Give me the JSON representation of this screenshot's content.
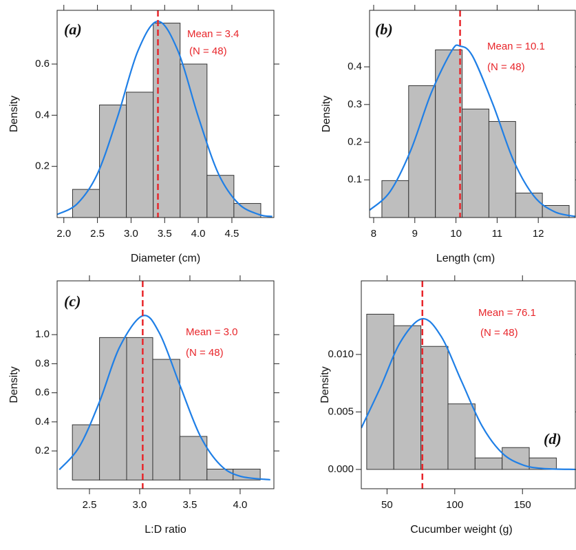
{
  "chart_data": [
    {
      "type": "histogram",
      "panel_label": "(a)",
      "xlabel": "Diameter (cm)",
      "ylabel": "Density",
      "bins": [
        2.13,
        2.53,
        2.93,
        3.33,
        3.73,
        4.13,
        4.53,
        4.93
      ],
      "values": [
        0.11,
        0.44,
        0.49,
        0.76,
        0.6,
        0.165,
        0.055
      ],
      "color": "#bebebe",
      "curve_color": "#1f7fe6",
      "mean_color": "#e8262b",
      "curve": {
        "x": [
          1.9,
          2.2,
          2.5,
          2.8,
          3.1,
          3.4,
          3.7,
          4.0,
          4.3,
          4.6,
          4.9,
          5.1
        ],
        "y": [
          0.012,
          0.054,
          0.171,
          0.394,
          0.65,
          0.767,
          0.65,
          0.394,
          0.171,
          0.054,
          0.012,
          0.004
        ]
      },
      "mean_line": 3.4,
      "annotation": "Mean = 3.4",
      "n_label": "(N = 48)",
      "xlim": [
        1.9,
        5.125
      ],
      "ylim": [
        0,
        0.81
      ],
      "xticks": [
        {
          "value": 2,
          "label": "2.0"
        },
        2.5,
        {
          "value": 3,
          "label": "3.0"
        },
        3.5,
        {
          "value": 4,
          "label": "4.0"
        },
        4.5
      ],
      "yticks": [
        0.2,
        0.4,
        0.6
      ]
    },
    {
      "type": "histogram",
      "panel_label": "(b)",
      "xlabel": "Length (cm)",
      "ylabel": "Density",
      "bins": [
        8.2,
        8.85,
        9.5,
        10.15,
        10.8,
        11.45,
        12.1,
        12.75
      ],
      "values": [
        0.098,
        0.35,
        0.445,
        0.288,
        0.255,
        0.065,
        0.032
      ],
      "color": "#bebebe",
      "curve_color": "#1f7fe6",
      "mean_color": "#e8262b",
      "curve": {
        "x": [
          7.9,
          8.4,
          8.9,
          9.4,
          9.9,
          10.1,
          10.4,
          10.9,
          11.4,
          11.9,
          12.4,
          12.9
        ],
        "y": [
          0.0195,
          0.069,
          0.178,
          0.331,
          0.443,
          0.455,
          0.429,
          0.3,
          0.151,
          0.056,
          0.015,
          0.0028
        ]
      },
      "mean_line": 10.1,
      "annotation": "Mean = 10.1",
      "n_label": "(N = 48)",
      "xlim": [
        7.9,
        12.9
      ],
      "ylim": [
        0,
        0.55
      ],
      "xticks": [
        8,
        9,
        10,
        11,
        12
      ],
      "yticks": [
        0.1,
        0.2,
        0.3,
        0.4
      ]
    },
    {
      "type": "histogram",
      "panel_label": "(c)",
      "xlabel": "L:D ratio",
      "ylabel": "Density",
      "bins": [
        2.33,
        2.6,
        2.87,
        3.13,
        3.4,
        3.67,
        3.93,
        4.2
      ],
      "values": [
        0.38,
        0.98,
        0.98,
        0.83,
        0.3,
        0.075,
        0.075
      ],
      "color": "#bebebe",
      "curve_color": "#1f7fe6",
      "mean_color": "#e8262b",
      "curve": {
        "x": [
          2.2,
          2.4,
          2.6,
          2.8,
          3.03,
          3.2,
          3.4,
          3.6,
          3.8,
          4.0,
          4.3
        ],
        "y": [
          0.071,
          0.23,
          0.538,
          0.914,
          1.13,
          1.006,
          0.653,
          0.307,
          0.105,
          0.026,
          0.0017
        ]
      },
      "mean_line": 3.03,
      "annotation": "Mean = 3.0",
      "n_label": "(N = 48)",
      "xlim": [
        2.178,
        4.336
      ],
      "ylim": [
        -0.06,
        1.37
      ],
      "xticks": [
        2.5,
        {
          "value": 3,
          "label": "3.0"
        },
        3.5,
        {
          "value": 4,
          "label": "4.0"
        }
      ],
      "yticks": [
        0.2,
        0.4,
        0.6,
        0.8,
        {
          "value": 1,
          "label": "1.0"
        }
      ]
    },
    {
      "type": "histogram",
      "panel_label": "(d)",
      "xlabel": "Cucumber weight (g)",
      "ylabel": "Density",
      "bins": [
        35,
        55,
        75,
        95,
        115,
        135,
        155,
        175
      ],
      "values": [
        0.0135,
        0.0125,
        0.0107,
        0.0057,
        0.001,
        0.0019,
        0.001
      ],
      "color": "#bebebe",
      "curve_color": "#1f7fe6",
      "mean_color": "#e8262b",
      "curve": {
        "x": [
          31,
          45,
          60,
          76,
          90,
          105,
          120,
          135,
          150,
          165,
          189
        ],
        "y": [
          0.0036,
          0.0071,
          0.0111,
          0.0131,
          0.01156,
          0.00767,
          0.00381,
          0.00142,
          0.0004,
          8e-05,
          0
        ]
      },
      "mean_line": 76.1,
      "annotation": "Mean = 76.1",
      "n_label": "(N = 48)",
      "xlim": [
        31,
        189
      ],
      "ylim": [
        -0.00168,
        0.0164
      ],
      "xticks": [
        50,
        100,
        150
      ],
      "yticks": [
        {
          "value": 0,
          "label": "0.000"
        },
        {
          "value": 0.005,
          "label": "0.005"
        },
        {
          "value": 0.01,
          "label": "0.010"
        }
      ]
    }
  ]
}
